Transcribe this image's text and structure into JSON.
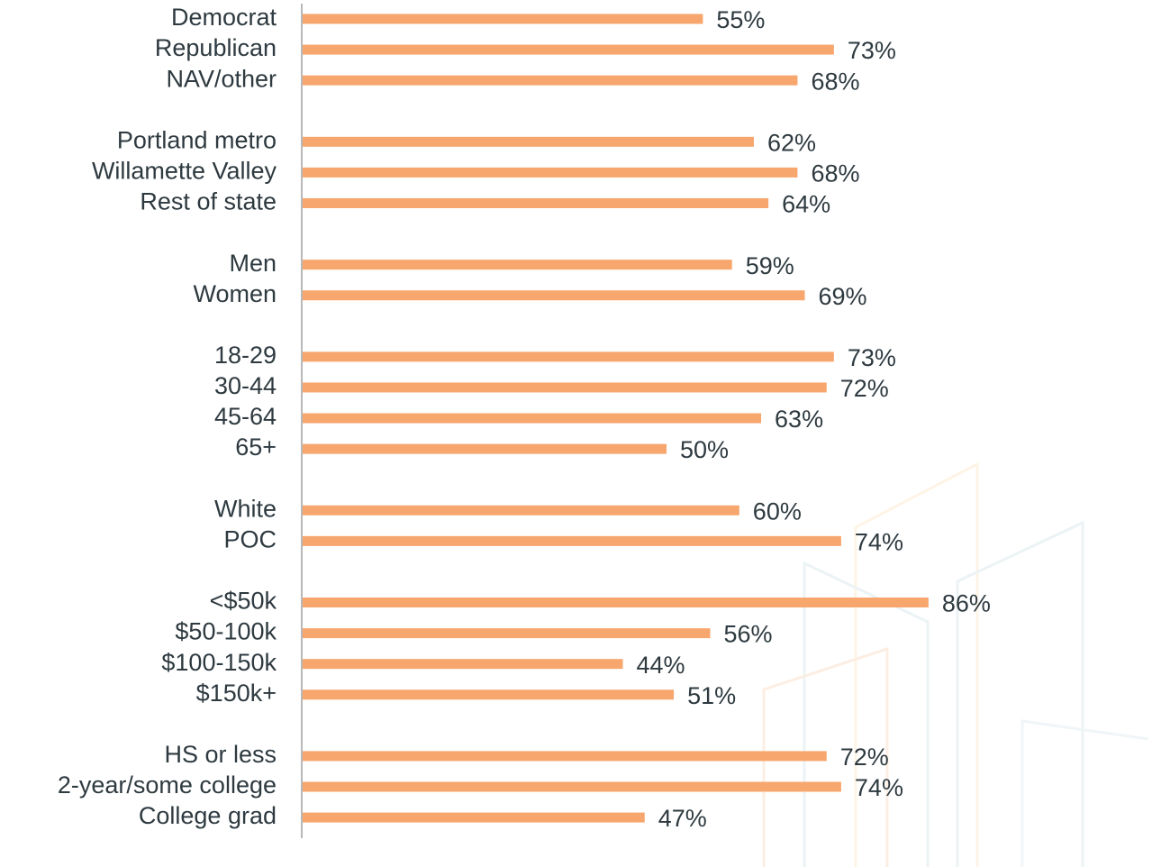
{
  "chart_data": {
    "type": "bar",
    "orientation": "horizontal",
    "color": "#f7a66d",
    "categories": [
      "Democrat",
      "Republican",
      "NAV/other",
      null,
      "Portland metro",
      "Willamette Valley",
      "Rest of state",
      null,
      "Men",
      "Women",
      null,
      "18-29",
      "30-44",
      "45-64",
      "65+",
      null,
      "White",
      "POC",
      null,
      "<$50k",
      "$50-100k",
      "$100-150k",
      "$150k+",
      null,
      "HS or less",
      "2-year/some college",
      "College grad"
    ],
    "values": [
      55,
      73,
      68,
      null,
      62,
      68,
      64,
      null,
      59,
      69,
      null,
      73,
      72,
      63,
      50,
      null,
      60,
      74,
      null,
      86,
      56,
      44,
      51,
      null,
      72,
      74,
      47
    ],
    "value_labels": [
      "55%",
      "73%",
      "68%",
      null,
      "62%",
      "68%",
      "64%",
      null,
      "59%",
      "69%",
      null,
      "73%",
      "72%",
      "63%",
      "50%",
      null,
      "60%",
      "74%",
      null,
      "86%",
      "56%",
      "44%",
      "51%",
      null,
      "72%",
      "74%",
      "47%"
    ]
  }
}
